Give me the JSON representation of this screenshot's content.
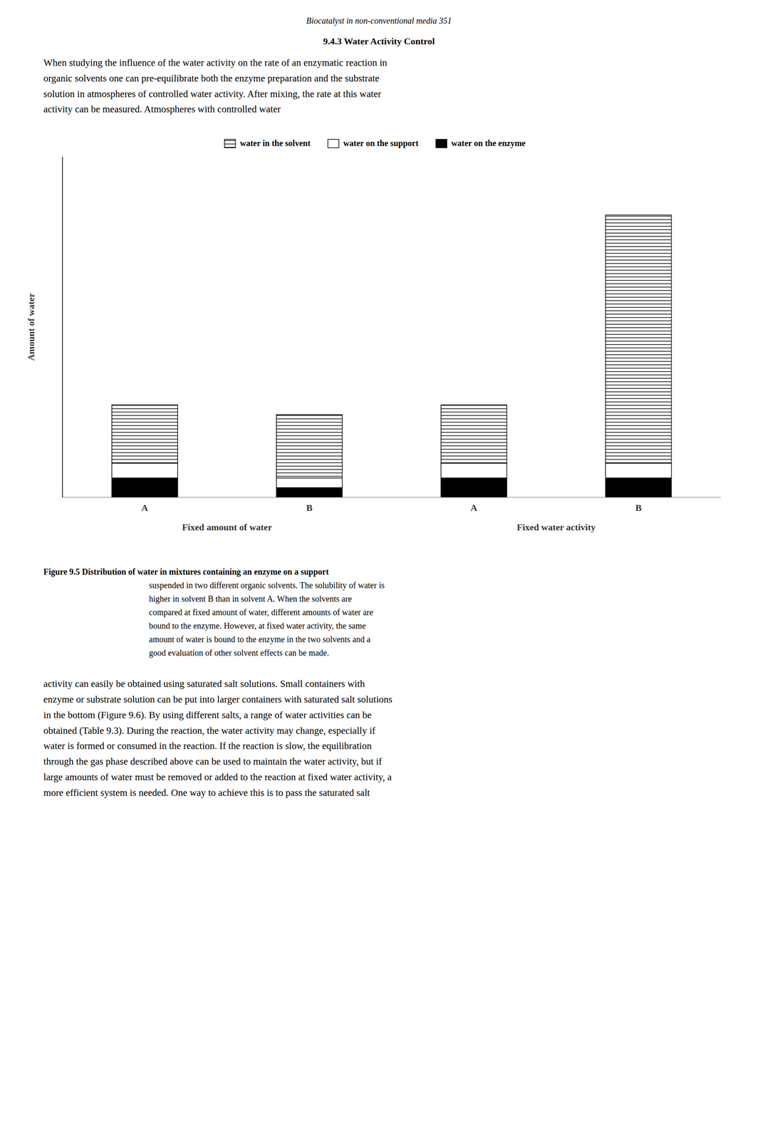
{
  "page_header": "Biocatalyst in non-conventional media   351",
  "section_title": "9.4.3 Water Activity Control",
  "body_text_top": "When studying the influence of the water activity on the rate of an enzymatic reaction in\norganic solvents one can pre-equilibrate both the enzyme preparation and the substrate\nsolution in atmospheres of controlled water activity. After mixing, the rate at this water\nactivity can be measured. Atmospheres with controlled water",
  "caption_label": "Figure 9.5",
  "caption_line": "Distribution of water in mixtures containing an enzyme on a support",
  "caption_rest": "suspended in two different organic solvents. The solubility of water is\nhigher in solvent B than in solvent A. When the solvents are\ncompared at fixed amount of water, different amounts of water are\nbound to the enzyme. However, at fixed water activity, the same\namount of water is bound to the enzyme in the two solvents and a\ngood evaluation of other solvent effects can be made.",
  "body_text_bottom": "activity can easily be obtained using saturated salt solutions. Small containers with\nenzyme or substrate solution can be put into larger containers with saturated salt solutions\nin the bottom (Figure 9.6). By using different salts, a range of water activities can be\nobtained (Table 9.3). During the reaction, the water activity may change, especially if\nwater is formed or consumed in the reaction. If the reaction is slow, the equilibration\nthrough the gas phase described above can be used to maintain the water activity, but if\nlarge amounts of water must be removed or added to the reaction at fixed water activity, a\nmore efficient system is needed. One way to achieve this is to pass the saturated salt",
  "chart_data": {
    "type": "bar",
    "stacked": true,
    "y_label": "Amount of water",
    "categories": [
      "A",
      "B",
      "A",
      "B"
    ],
    "annotations": [
      "Fixed amount of water",
      "Fixed water activity"
    ],
    "series": [
      {
        "name": "water on the enzyme",
        "color": "#000000",
        "values": [
          0.2,
          0.1,
          0.2,
          0.2
        ]
      },
      {
        "name": "water on the support",
        "color": "#ffffff",
        "values": [
          0.15,
          0.1,
          0.15,
          0.15
        ]
      },
      {
        "name": "water in the solvent",
        "color": "#ffffff",
        "values": [
          0.6,
          0.65,
          0.6,
          2.55
        ]
      }
    ],
    "ylim": [
      0,
      3.5
    ],
    "tick_labels": "x",
    "grid": false,
    "legend": "top"
  }
}
